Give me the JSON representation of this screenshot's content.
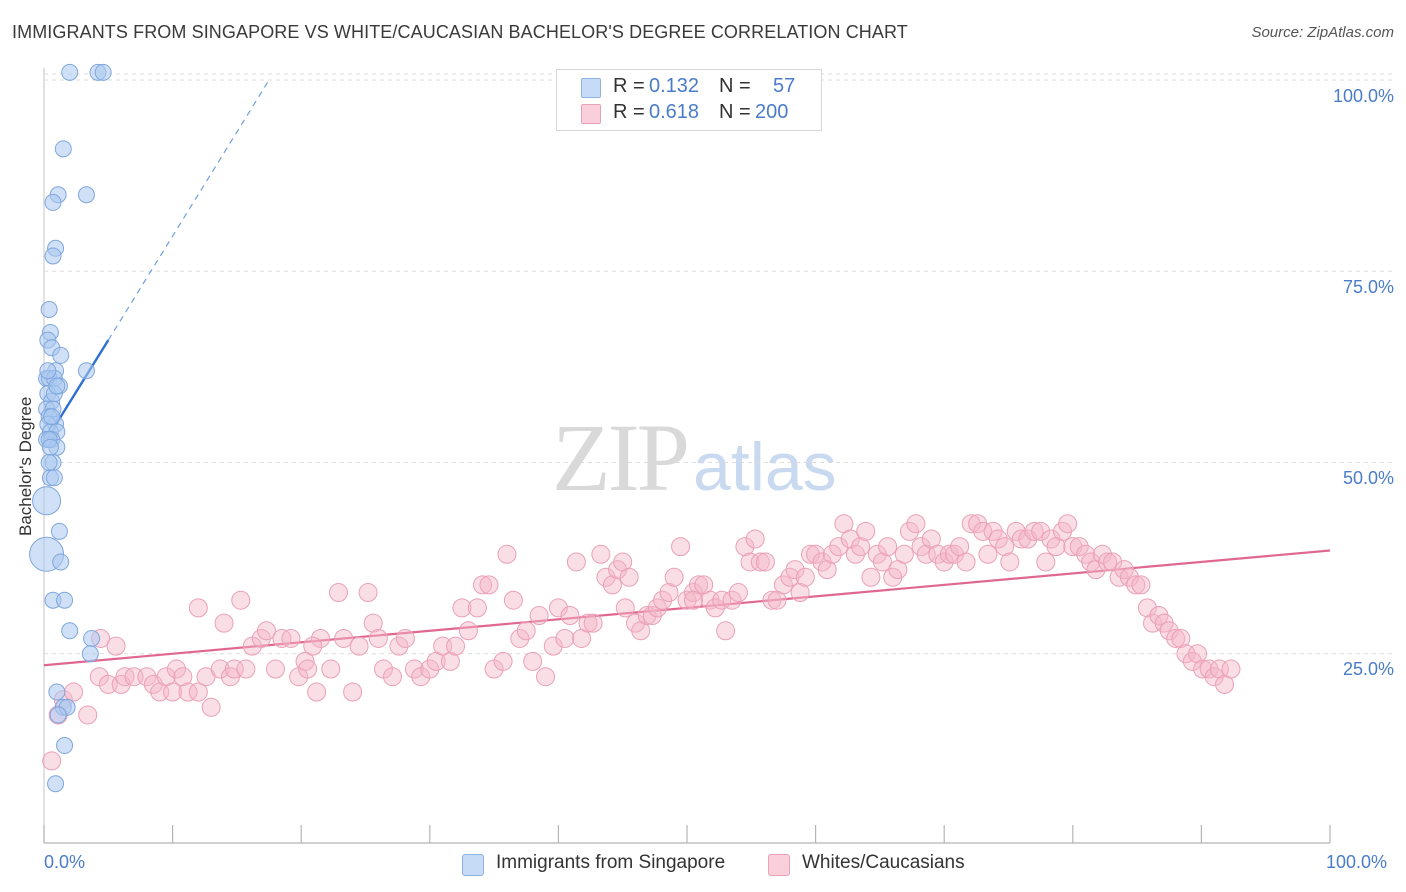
{
  "title": "IMMIGRANTS FROM SINGAPORE VS WHITE/CAUCASIAN BACHELOR'S DEGREE CORRELATION CHART",
  "source": "Source: ZipAtlas.com",
  "watermark": {
    "left": "ZIP",
    "right": "atlas"
  },
  "legend": {
    "rows": [
      {
        "r_label": "R =",
        "r_value": "0.132",
        "n_label": "N =",
        "n_value": "57",
        "color": "#a9c8f0"
      },
      {
        "r_label": "R =",
        "r_value": "0.618",
        "n_label": "N =",
        "n_value": "200",
        "color": "#f5b6c8"
      }
    ]
  },
  "bottom_legend": [
    {
      "label": "Immigrants from Singapore",
      "color": "#a9c8f0"
    },
    {
      "label": "Whites/Caucasians",
      "color": "#f5b6c8"
    }
  ],
  "chart_data": {
    "type": "scatter",
    "title": "IMMIGRANTS FROM SINGAPORE VS WHITE/CAUCASIAN BACHELOR'S DEGREE CORRELATION CHART",
    "xlabel": "",
    "ylabel": "Bachelor's Degree",
    "xlim": [
      0,
      100
    ],
    "ylim": [
      0,
      105
    ],
    "x_tick_labels": [
      "0.0%",
      "100.0%"
    ],
    "y_ticks": [
      25,
      50,
      75,
      100
    ],
    "y_tick_labels": [
      "25.0%",
      "50.0%",
      "75.0%",
      "100.0%"
    ],
    "grid": true,
    "series": [
      {
        "name": "Immigrants from Singapore",
        "color": "#6f9fe0",
        "fill": "#a9c8f0",
        "trend": {
          "x": [
            0.2,
            5.0
          ],
          "y": [
            53,
            66
          ],
          "extend_to": [
            17.5,
            100
          ]
        },
        "points": [
          [
            2.0,
            101
          ],
          [
            4.2,
            101
          ],
          [
            4.6,
            101
          ],
          [
            1.5,
            91
          ],
          [
            1.1,
            85
          ],
          [
            3.3,
            85
          ],
          [
            0.7,
            84
          ],
          [
            0.9,
            78
          ],
          [
            0.7,
            77
          ],
          [
            0.4,
            70
          ],
          [
            0.5,
            67
          ],
          [
            0.3,
            66
          ],
          [
            0.6,
            65
          ],
          [
            1.3,
            64
          ],
          [
            0.9,
            62
          ],
          [
            3.3,
            62
          ],
          [
            0.2,
            61
          ],
          [
            0.4,
            61
          ],
          [
            0.8,
            61
          ],
          [
            1.2,
            60
          ],
          [
            0.3,
            59
          ],
          [
            0.6,
            58
          ],
          [
            0.2,
            57
          ],
          [
            0.7,
            57
          ],
          [
            0.4,
            56
          ],
          [
            0.9,
            55
          ],
          [
            0.3,
            55
          ],
          [
            0.5,
            54
          ],
          [
            1.0,
            54
          ],
          [
            0.2,
            53
          ],
          [
            0.6,
            53
          ],
          [
            1.0,
            52
          ],
          [
            0.7,
            50
          ],
          [
            0.5,
            48
          ],
          [
            0.8,
            48
          ],
          [
            0.2,
            45
          ],
          [
            1.2,
            41
          ],
          [
            0.2,
            38
          ],
          [
            1.3,
            37
          ],
          [
            0.7,
            32
          ],
          [
            1.6,
            32
          ],
          [
            2.0,
            28
          ],
          [
            3.7,
            27
          ],
          [
            3.6,
            25
          ],
          [
            1.0,
            20
          ],
          [
            1.5,
            18
          ],
          [
            1.8,
            18
          ],
          [
            1.1,
            17
          ],
          [
            1.6,
            13
          ],
          [
            0.9,
            8
          ],
          [
            0.4,
            53
          ],
          [
            0.8,
            59
          ],
          [
            0.3,
            62
          ],
          [
            0.5,
            52
          ],
          [
            0.6,
            56
          ],
          [
            0.4,
            50
          ],
          [
            1.0,
            60
          ]
        ],
        "sizes_note": "two larger markers near (0.2,45) and (0.2,38)"
      },
      {
        "name": "Whites/Caucasians",
        "color": "#e06890",
        "fill": "#f5b6c8",
        "trend": {
          "x": [
            0,
            100
          ],
          "y": [
            23.5,
            38.5
          ]
        },
        "points": [
          [
            0.6,
            11
          ],
          [
            1.1,
            17
          ],
          [
            1.5,
            19
          ],
          [
            2.3,
            20
          ],
          [
            3.4,
            17
          ],
          [
            4.3,
            22
          ],
          [
            4.4,
            27
          ],
          [
            5.0,
            21
          ],
          [
            5.6,
            26
          ],
          [
            6.0,
            21
          ],
          [
            6.3,
            22
          ],
          [
            7.0,
            22
          ],
          [
            8.0,
            22
          ],
          [
            8.5,
            21
          ],
          [
            9.0,
            20
          ],
          [
            9.5,
            22
          ],
          [
            10.0,
            20
          ],
          [
            10.3,
            23
          ],
          [
            10.8,
            22
          ],
          [
            11.2,
            20
          ],
          [
            12.0,
            20
          ],
          [
            12.6,
            22
          ],
          [
            12.0,
            31
          ],
          [
            13.0,
            18
          ],
          [
            13.7,
            23
          ],
          [
            14.0,
            29
          ],
          [
            14.5,
            22
          ],
          [
            14.8,
            23
          ],
          [
            15.3,
            32
          ],
          [
            15.7,
            23
          ],
          [
            16.2,
            26
          ],
          [
            16.9,
            27
          ],
          [
            17.3,
            28
          ],
          [
            18.0,
            23
          ],
          [
            18.5,
            27
          ],
          [
            19.2,
            27
          ],
          [
            19.8,
            22
          ],
          [
            20.3,
            24
          ],
          [
            20.5,
            23
          ],
          [
            21.2,
            20
          ],
          [
            21.5,
            27
          ],
          [
            22.3,
            23
          ],
          [
            22.9,
            33
          ],
          [
            23.3,
            27
          ],
          [
            24.0,
            20
          ],
          [
            24.5,
            26
          ],
          [
            25.2,
            33
          ],
          [
            25.6,
            29
          ],
          [
            26.0,
            27
          ],
          [
            26.4,
            23
          ],
          [
            27.1,
            22
          ],
          [
            27.6,
            26
          ],
          [
            28.1,
            27
          ],
          [
            28.8,
            23
          ],
          [
            29.3,
            22
          ],
          [
            30.0,
            23
          ],
          [
            30.5,
            24
          ],
          [
            31.0,
            26
          ],
          [
            31.6,
            24
          ],
          [
            32.0,
            26
          ],
          [
            32.5,
            31
          ],
          [
            33.0,
            28
          ],
          [
            33.7,
            31
          ],
          [
            34.1,
            34
          ],
          [
            34.6,
            34
          ],
          [
            35.0,
            23
          ],
          [
            35.7,
            24
          ],
          [
            36.0,
            38
          ],
          [
            36.5,
            32
          ],
          [
            37.0,
            27
          ],
          [
            37.5,
            28
          ],
          [
            38.0,
            24
          ],
          [
            38.5,
            30
          ],
          [
            39.0,
            22
          ],
          [
            39.6,
            26
          ],
          [
            40.0,
            31
          ],
          [
            40.5,
            27
          ],
          [
            40.9,
            30
          ],
          [
            41.4,
            37
          ],
          [
            41.8,
            27
          ],
          [
            42.3,
            29
          ],
          [
            42.7,
            29
          ],
          [
            43.3,
            38
          ],
          [
            43.7,
            35
          ],
          [
            44.2,
            34
          ],
          [
            44.6,
            36
          ],
          [
            45.0,
            37
          ],
          [
            45.5,
            35
          ],
          [
            46.0,
            29
          ],
          [
            46.4,
            28
          ],
          [
            46.9,
            30
          ],
          [
            47.3,
            30
          ],
          [
            47.7,
            31
          ],
          [
            48.1,
            32
          ],
          [
            48.6,
            33
          ],
          [
            49.0,
            35
          ],
          [
            49.5,
            39
          ],
          [
            50.0,
            32
          ],
          [
            50.5,
            33
          ],
          [
            50.9,
            34
          ],
          [
            51.3,
            34
          ],
          [
            51.8,
            32
          ],
          [
            52.2,
            31
          ],
          [
            52.7,
            32
          ],
          [
            53.0,
            28
          ],
          [
            53.5,
            32
          ],
          [
            54.0,
            33
          ],
          [
            54.5,
            39
          ],
          [
            54.9,
            37
          ],
          [
            55.3,
            40
          ],
          [
            55.7,
            37
          ],
          [
            56.1,
            37
          ],
          [
            56.6,
            32
          ],
          [
            57.0,
            32
          ],
          [
            57.5,
            34
          ],
          [
            58.0,
            35
          ],
          [
            58.4,
            36
          ],
          [
            58.8,
            33
          ],
          [
            59.2,
            35
          ],
          [
            59.6,
            38
          ],
          [
            60.0,
            38
          ],
          [
            60.5,
            37
          ],
          [
            60.9,
            36
          ],
          [
            61.3,
            38
          ],
          [
            61.8,
            39
          ],
          [
            62.2,
            42
          ],
          [
            62.7,
            40
          ],
          [
            63.1,
            38
          ],
          [
            63.5,
            39
          ],
          [
            63.9,
            41
          ],
          [
            64.3,
            35
          ],
          [
            64.8,
            38
          ],
          [
            65.2,
            37
          ],
          [
            65.6,
            39
          ],
          [
            66.0,
            35
          ],
          [
            66.4,
            36
          ],
          [
            66.9,
            38
          ],
          [
            67.3,
            41
          ],
          [
            67.8,
            42
          ],
          [
            68.2,
            39
          ],
          [
            68.6,
            38
          ],
          [
            69.0,
            40
          ],
          [
            69.5,
            38
          ],
          [
            70.0,
            37
          ],
          [
            70.4,
            38
          ],
          [
            70.8,
            38
          ],
          [
            71.2,
            39
          ],
          [
            71.7,
            37
          ],
          [
            72.1,
            42
          ],
          [
            72.6,
            42
          ],
          [
            73.0,
            41
          ],
          [
            73.4,
            38
          ],
          [
            73.8,
            41
          ],
          [
            74.2,
            40
          ],
          [
            74.7,
            39
          ],
          [
            75.1,
            37
          ],
          [
            75.6,
            41
          ],
          [
            76.0,
            40
          ],
          [
            76.5,
            40
          ],
          [
            77.0,
            41
          ],
          [
            77.5,
            41
          ],
          [
            77.9,
            37
          ],
          [
            78.3,
            40
          ],
          [
            78.7,
            39
          ],
          [
            79.2,
            41
          ],
          [
            79.6,
            42
          ],
          [
            80.0,
            39
          ],
          [
            80.5,
            39
          ],
          [
            81.0,
            38
          ],
          [
            81.4,
            37
          ],
          [
            81.8,
            36
          ],
          [
            82.3,
            38
          ],
          [
            82.7,
            37
          ],
          [
            83.1,
            37
          ],
          [
            83.6,
            35
          ],
          [
            84.0,
            36
          ],
          [
            84.4,
            35
          ],
          [
            84.9,
            34
          ],
          [
            85.3,
            34
          ],
          [
            85.8,
            31
          ],
          [
            86.2,
            29
          ],
          [
            86.7,
            30
          ],
          [
            87.1,
            29
          ],
          [
            87.5,
            28
          ],
          [
            88.0,
            27
          ],
          [
            88.4,
            27
          ],
          [
            88.8,
            25
          ],
          [
            89.3,
            24
          ],
          [
            89.7,
            25
          ],
          [
            90.1,
            23
          ],
          [
            90.6,
            23
          ],
          [
            91.0,
            22
          ],
          [
            91.4,
            23
          ],
          [
            91.8,
            21
          ],
          [
            92.3,
            23
          ],
          [
            50.5,
            32
          ],
          [
            45.2,
            31
          ],
          [
            20.9,
            26
          ]
        ]
      }
    ]
  }
}
